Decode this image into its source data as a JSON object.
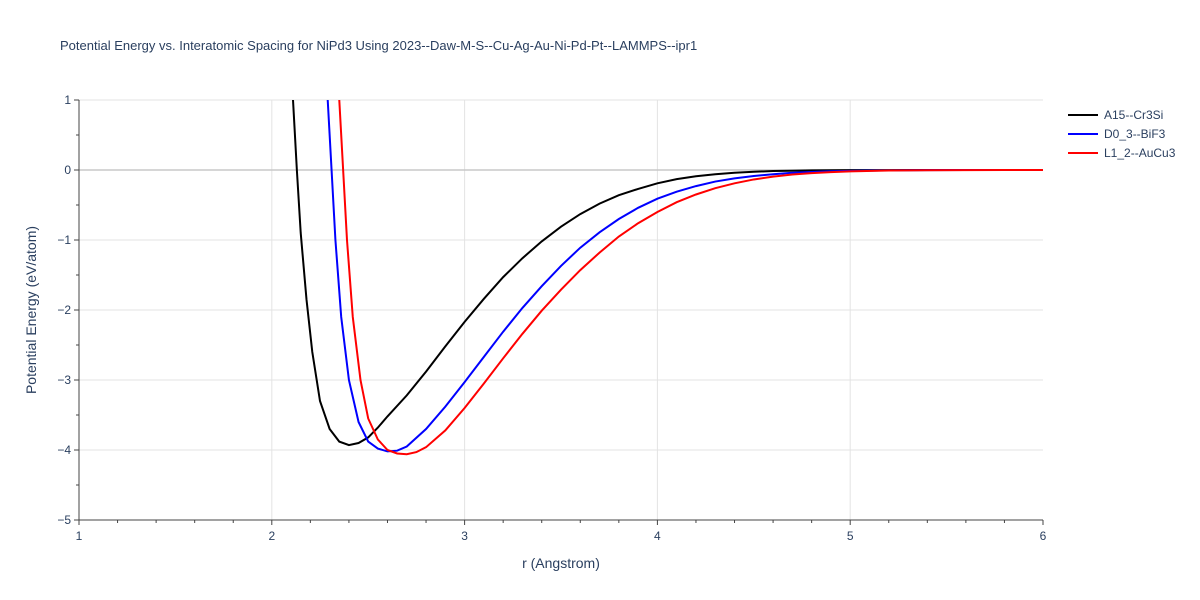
{
  "chart_data": {
    "type": "line",
    "title": "Potential Energy vs. Interatomic Spacing for NiPd3 Using 2023--Daw-M-S--Cu-Ag-Au-Ni-Pd-Pt--LAMMPS--ipr1",
    "xlabel": "r (Angstrom)",
    "ylabel": "Potential Energy (eV/atom)",
    "xlim": [
      1,
      6
    ],
    "ylim": [
      -5,
      1
    ],
    "x_ticks": [
      "1",
      "2",
      "3",
      "4",
      "5",
      "6"
    ],
    "y_ticks": [
      "−5",
      "−4",
      "−3",
      "−2",
      "−1",
      "0",
      "1"
    ],
    "grid": true,
    "legend_position": "top-right",
    "series": [
      {
        "name": "A15--Cr3Si",
        "color": "#000000",
        "x": [
          2.11,
          2.13,
          2.15,
          2.18,
          2.21,
          2.25,
          2.3,
          2.35,
          2.4,
          2.45,
          2.5,
          2.55,
          2.6,
          2.7,
          2.8,
          2.9,
          3.0,
          3.1,
          3.2,
          3.3,
          3.4,
          3.5,
          3.6,
          3.7,
          3.8,
          3.9,
          4.0,
          4.1,
          4.2,
          4.3,
          4.4,
          4.5,
          4.6,
          4.7,
          4.8,
          4.9,
          5.0,
          5.2,
          5.4,
          5.6,
          5.8,
          6.0
        ],
        "y": [
          1.0,
          0.0,
          -0.9,
          -1.85,
          -2.6,
          -3.3,
          -3.7,
          -3.88,
          -3.93,
          -3.9,
          -3.82,
          -3.68,
          -3.52,
          -3.22,
          -2.88,
          -2.52,
          -2.17,
          -1.84,
          -1.53,
          -1.26,
          -1.02,
          -0.81,
          -0.63,
          -0.48,
          -0.36,
          -0.27,
          -0.19,
          -0.13,
          -0.09,
          -0.06,
          -0.04,
          -0.025,
          -0.015,
          -0.01,
          -0.006,
          -0.003,
          -0.002,
          -0.001,
          0.0,
          0.0,
          0.0,
          0.0
        ]
      },
      {
        "name": "D0_3--BiF3",
        "color": "#0000ff",
        "x": [
          2.29,
          2.31,
          2.33,
          2.36,
          2.4,
          2.45,
          2.5,
          2.55,
          2.6,
          2.65,
          2.7,
          2.8,
          2.9,
          3.0,
          3.1,
          3.2,
          3.3,
          3.4,
          3.5,
          3.6,
          3.7,
          3.8,
          3.9,
          4.0,
          4.1,
          4.2,
          4.3,
          4.4,
          4.5,
          4.6,
          4.7,
          4.8,
          4.9,
          5.0,
          5.2,
          5.4,
          5.6,
          5.8,
          6.0
        ],
        "y": [
          1.0,
          0.0,
          -1.0,
          -2.1,
          -3.0,
          -3.6,
          -3.88,
          -3.98,
          -4.02,
          -4.01,
          -3.95,
          -3.7,
          -3.38,
          -3.03,
          -2.67,
          -2.31,
          -1.97,
          -1.66,
          -1.37,
          -1.11,
          -0.89,
          -0.7,
          -0.54,
          -0.41,
          -0.31,
          -0.23,
          -0.165,
          -0.12,
          -0.085,
          -0.06,
          -0.04,
          -0.028,
          -0.018,
          -0.012,
          -0.005,
          -0.002,
          0.0,
          0.0,
          0.0
        ]
      },
      {
        "name": "L1_2--AuCu3",
        "color": "#ff0000",
        "x": [
          2.35,
          2.37,
          2.39,
          2.42,
          2.46,
          2.5,
          2.55,
          2.6,
          2.65,
          2.7,
          2.75,
          2.8,
          2.9,
          3.0,
          3.1,
          3.2,
          3.3,
          3.4,
          3.5,
          3.6,
          3.7,
          3.8,
          3.9,
          4.0,
          4.1,
          4.2,
          4.3,
          4.4,
          4.5,
          4.6,
          4.7,
          4.8,
          4.9,
          5.0,
          5.2,
          5.4,
          5.6,
          5.8,
          6.0
        ],
        "y": [
          1.0,
          0.0,
          -1.0,
          -2.1,
          -3.0,
          -3.55,
          -3.85,
          -4.0,
          -4.05,
          -4.06,
          -4.03,
          -3.96,
          -3.72,
          -3.4,
          -3.05,
          -2.69,
          -2.34,
          -2.01,
          -1.71,
          -1.43,
          -1.18,
          -0.95,
          -0.76,
          -0.6,
          -0.46,
          -0.35,
          -0.26,
          -0.19,
          -0.135,
          -0.095,
          -0.065,
          -0.045,
          -0.03,
          -0.02,
          -0.008,
          -0.003,
          -0.001,
          0.0,
          0.0
        ]
      }
    ]
  }
}
